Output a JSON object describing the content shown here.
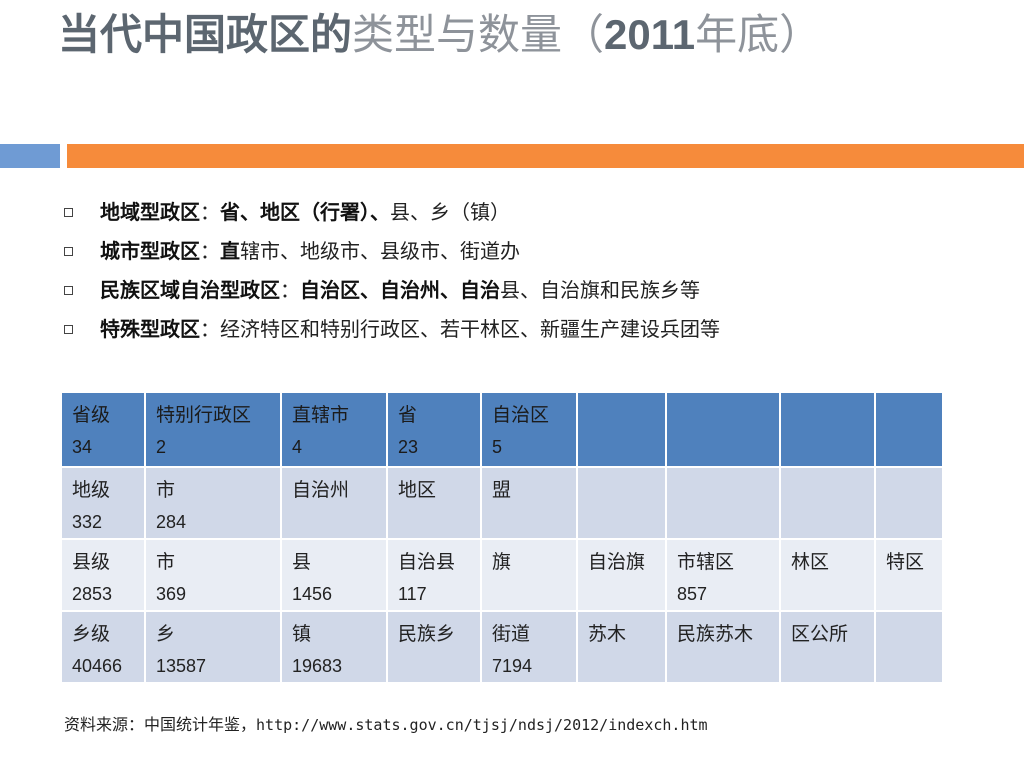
{
  "title": {
    "part_strong": "当代中国政区的",
    "part_light": "类型与数量（",
    "year": "2011",
    "part_end": "年底）"
  },
  "bullets": [
    {
      "bold": "地域型政区",
      "sep": "：",
      "bold2": "省、地区（行署）、",
      "rest": "县、乡（镇）"
    },
    {
      "bold": "城市型政区",
      "sep": "：",
      "bold2": "直",
      "rest": "辖市、地级市、县级市、街道办"
    },
    {
      "bold": "民族区域自治型政区",
      "sep": "：",
      "bold2": "自治区、自治州、自治",
      "rest": "县、自治旗和民族乡等"
    },
    {
      "bold": "特殊型政区",
      "sep": "：",
      "bold2": "",
      "rest": "经济特区和特别行政区、若干林区、新疆生产建设兵团等"
    }
  ],
  "table": {
    "rows": [
      [
        {
          "l1": "省级",
          "l2": "34"
        },
        {
          "l1": "特别行政区",
          "l2": "2"
        },
        {
          "l1": "直辖市",
          "l2": "4"
        },
        {
          "l1": "省",
          "l2": "23"
        },
        {
          "l1": "自治区",
          "l2": "5"
        },
        {
          "l1": "",
          "l2": ""
        },
        {
          "l1": "",
          "l2": ""
        },
        {
          "l1": "",
          "l2": ""
        },
        {
          "l1": "",
          "l2": ""
        }
      ],
      [
        {
          "l1": "地级",
          "l2": "332"
        },
        {
          "l1": "市",
          "l2": "284"
        },
        {
          "l1": "自治州",
          "l2": ""
        },
        {
          "l1": "地区",
          "l2": ""
        },
        {
          "l1": "盟",
          "l2": ""
        },
        {
          "l1": "",
          "l2": ""
        },
        {
          "l1": "",
          "l2": ""
        },
        {
          "l1": "",
          "l2": ""
        },
        {
          "l1": "",
          "l2": ""
        }
      ],
      [
        {
          "l1": "县级",
          "l2": "2853"
        },
        {
          "l1": "市",
          "l2": "369"
        },
        {
          "l1": "县",
          "l2": "1456"
        },
        {
          "l1": "自治县",
          "l2": "117"
        },
        {
          "l1": "旗",
          "l2": ""
        },
        {
          "l1": "自治旗",
          "l2": ""
        },
        {
          "l1": "市辖区",
          "l2": "857"
        },
        {
          "l1": "林区",
          "l2": ""
        },
        {
          "l1": "特区",
          "l2": ""
        }
      ],
      [
        {
          "l1": "乡级",
          "l2": "40466"
        },
        {
          "l1": "乡",
          "l2": "13587"
        },
        {
          "l1": "镇",
          "l2": "19683"
        },
        {
          "l1": "民族乡",
          "l2": ""
        },
        {
          "l1": "街道",
          "l2": "7194"
        },
        {
          "l1": "苏木",
          "l2": ""
        },
        {
          "l1": "民族苏木",
          "l2": ""
        },
        {
          "l1": "区公所",
          "l2": ""
        },
        {
          "l1": "",
          "l2": ""
        }
      ]
    ]
  },
  "source": {
    "label": "资料来源：中国统计年鉴，",
    "url": "http://www.stats.gov.cn/tjsj/ndsj/2012/indexch.htm"
  },
  "colors": {
    "header_row": "#4f81bd",
    "odd_row": "#d0d8e8",
    "even_row": "#e9edf4",
    "band_blue": "#6f9bd4",
    "band_orange": "#f68b3b"
  }
}
